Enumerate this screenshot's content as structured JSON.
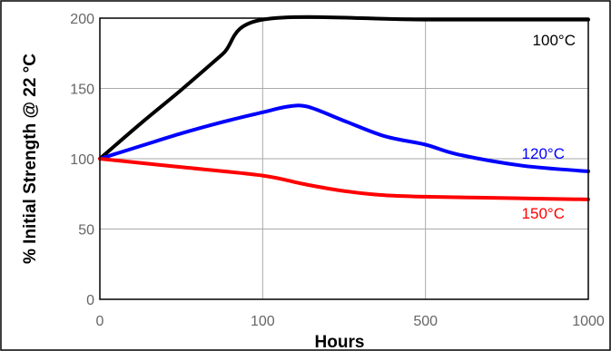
{
  "chart_data": {
    "type": "line",
    "title": "",
    "xlabel": "Hours",
    "ylabel": "% Initial Strength @ 22 °C",
    "x_ticks": [
      "0",
      "100",
      "500",
      "1000"
    ],
    "y_ticks": [
      "0",
      "50",
      "100",
      "150",
      "200"
    ],
    "xlim": [
      0,
      1000
    ],
    "ylim": [
      0,
      200
    ],
    "x_scale": "piecewise: 0, 100, 500, 1000 evenly spaced",
    "grid": true,
    "legend": "labels placed next to line ends",
    "series": [
      {
        "name": "100°C",
        "color": "#000000",
        "points": [
          [
            0,
            100
          ],
          [
            25,
            125
          ],
          [
            50,
            149
          ],
          [
            75,
            174
          ],
          [
            100,
            199
          ],
          [
            500,
            199
          ],
          [
            1000,
            199
          ]
        ]
      },
      {
        "name": "120°C",
        "color": "#0000ff",
        "points": [
          [
            0,
            100
          ],
          [
            25,
            109
          ],
          [
            50,
            118
          ],
          [
            75,
            126
          ],
          [
            100,
            133
          ],
          [
            160,
            137
          ],
          [
            210,
            137
          ],
          [
            300,
            127
          ],
          [
            400,
            116
          ],
          [
            500,
            110
          ],
          [
            600,
            103
          ],
          [
            800,
            95
          ],
          [
            1000,
            91
          ]
        ]
      },
      {
        "name": "150°C",
        "color": "#ff0000",
        "points": [
          [
            0,
            100
          ],
          [
            50,
            94
          ],
          [
            100,
            88
          ],
          [
            200,
            82
          ],
          [
            300,
            77
          ],
          [
            400,
            74
          ],
          [
            500,
            73
          ],
          [
            750,
            72
          ],
          [
            1000,
            71
          ]
        ]
      }
    ]
  }
}
